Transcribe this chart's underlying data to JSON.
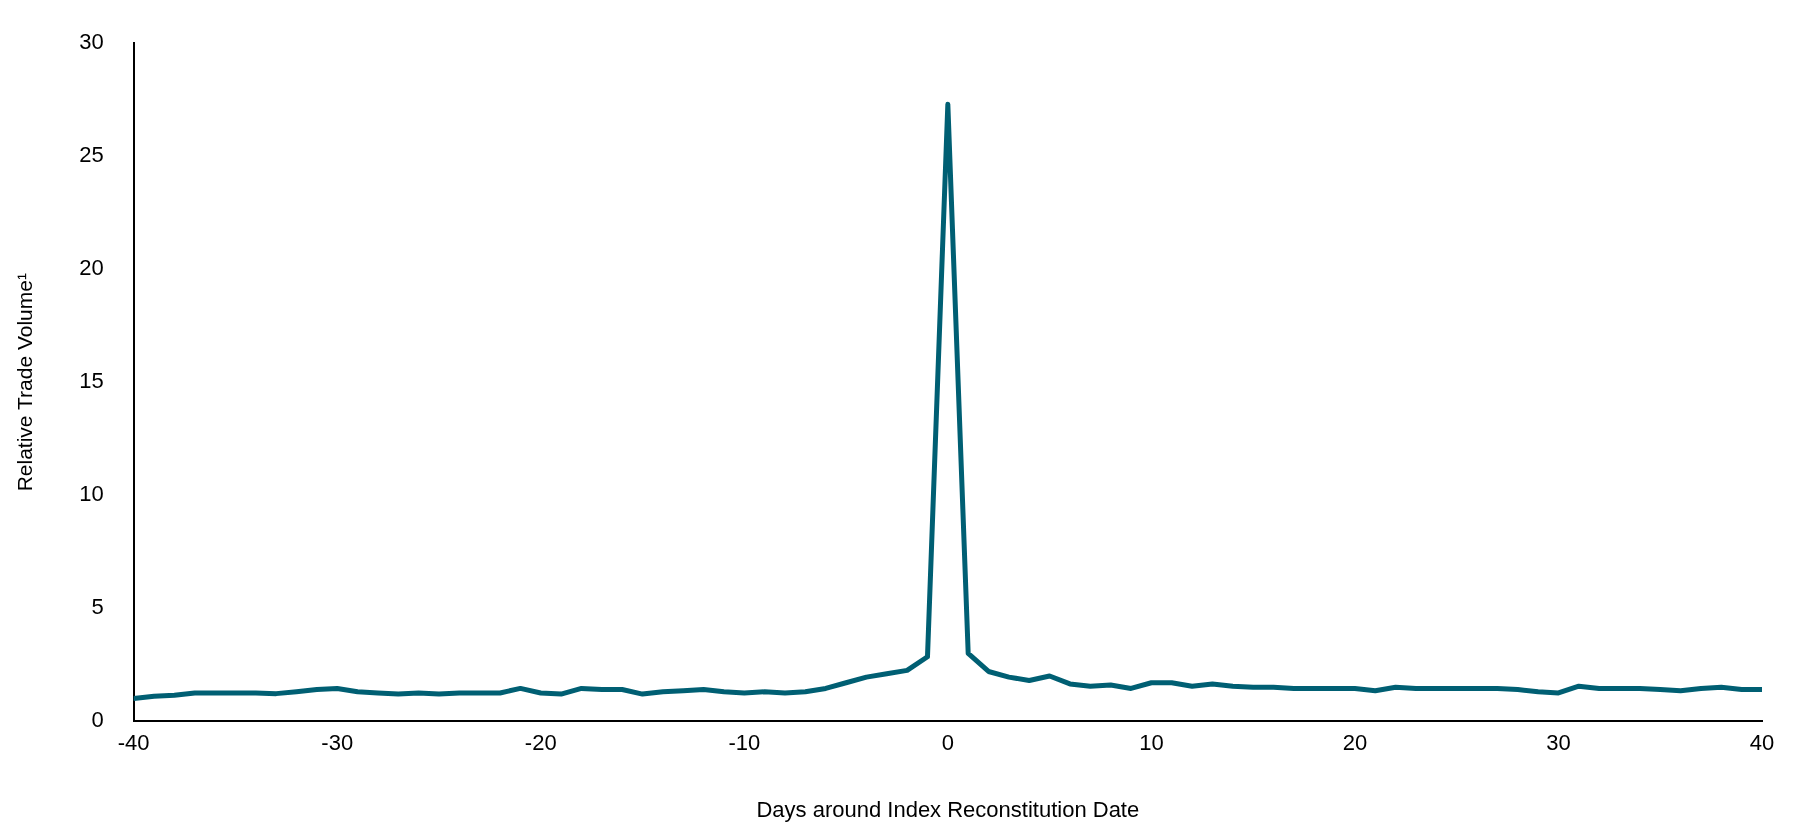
{
  "chart_data": {
    "type": "line",
    "xlabel": "Days around Index Reconstitution Date",
    "ylabel": "Relative Trade Volume¹",
    "x": [
      -40,
      -39,
      -38,
      -37,
      -36,
      -35,
      -34,
      -33,
      -32,
      -31,
      -30,
      -29,
      -28,
      -27,
      -26,
      -25,
      -24,
      -23,
      -22,
      -21,
      -20,
      -19,
      -18,
      -17,
      -16,
      -15,
      -14,
      -13,
      -12,
      -11,
      -10,
      -9,
      -8,
      -7,
      -6,
      -5,
      -4,
      -3,
      -2,
      -1,
      0,
      1,
      2,
      3,
      4,
      5,
      6,
      7,
      8,
      9,
      10,
      11,
      12,
      13,
      14,
      15,
      16,
      17,
      18,
      19,
      20,
      21,
      22,
      23,
      24,
      25,
      26,
      27,
      28,
      29,
      30,
      31,
      32,
      33,
      34,
      35,
      36,
      37,
      38,
      39,
      40
    ],
    "series": [
      {
        "color": "#005f73",
        "values": [
          1.0,
          1.1,
          1.15,
          1.25,
          1.25,
          1.25,
          1.25,
          1.22,
          1.3,
          1.4,
          1.45,
          1.3,
          1.25,
          1.2,
          1.25,
          1.2,
          1.25,
          1.25,
          1.25,
          1.45,
          1.25,
          1.2,
          1.45,
          1.4,
          1.4,
          1.2,
          1.3,
          1.35,
          1.4,
          1.3,
          1.25,
          1.3,
          1.25,
          1.3,
          1.45,
          1.7,
          1.95,
          2.1,
          2.25,
          2.85,
          27.3,
          3.0,
          2.2,
          1.95,
          1.8,
          2.0,
          1.65,
          1.55,
          1.6,
          1.45,
          1.7,
          1.7,
          1.55,
          1.65,
          1.55,
          1.5,
          1.5,
          1.45,
          1.45,
          1.45,
          1.45,
          1.35,
          1.5,
          1.45,
          1.45,
          1.45,
          1.45,
          1.45,
          1.4,
          1.3,
          1.25,
          1.55,
          1.45,
          1.45,
          1.45,
          1.4,
          1.35,
          1.45,
          1.5,
          1.4,
          1.4
        ]
      }
    ],
    "xlim": [
      -40,
      40
    ],
    "xticks": [
      -40,
      -30,
      -20,
      -10,
      0,
      10,
      20,
      30,
      40
    ],
    "ylim": [
      0,
      30
    ],
    "yticks": [
      0,
      5,
      10,
      15,
      20,
      25,
      30
    ],
    "grid": false,
    "legend": false,
    "marker": "none",
    "line_style": "solid"
  }
}
